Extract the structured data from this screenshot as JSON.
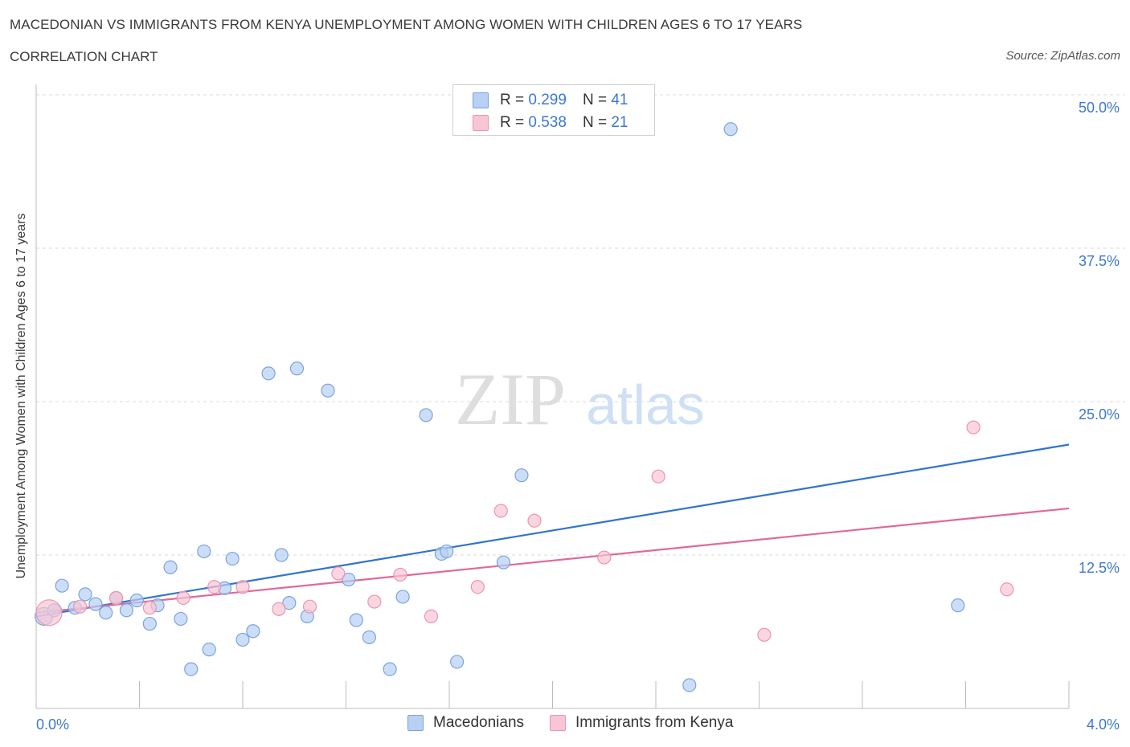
{
  "title": "MACEDONIAN VS IMMIGRANTS FROM KENYA UNEMPLOYMENT AMONG WOMEN WITH CHILDREN AGES 6 TO 17 YEARS",
  "subtitle": "CORRELATION CHART",
  "source": "Source: ZipAtlas.com",
  "watermark": {
    "zip": "ZIP",
    "atlas": "atlas"
  },
  "colors": {
    "macedonians_fill": "#b7d0f3",
    "macedonians_stroke": "#7aa4dc",
    "macedonians_line": "#2f74d0",
    "kenya_fill": "#f8c5d4",
    "kenya_stroke": "#ec94b0",
    "kenya_line": "#e0699a",
    "tick_label": "#3d78d0"
  },
  "legend_top": {
    "rows": [
      {
        "r_label": "R = ",
        "r_value": "0.299",
        "n_label": "N = ",
        "n_value": "41"
      },
      {
        "r_label": "R = ",
        "r_value": "0.538",
        "n_label": "N = ",
        "n_value": "21"
      }
    ]
  },
  "legend_bottom": [
    "Macedonians",
    "Immigrants from Kenya"
  ],
  "chart_data": {
    "type": "scatter",
    "title": "MACEDONIAN VS IMMIGRANTS FROM KENYA UNEMPLOYMENT AMONG WOMEN WITH CHILDREN AGES 6 TO 17 YEARS",
    "xlabel": "",
    "ylabel": "Unemployment Among Women with Children Ages 6 to 17 years",
    "xlim": [
      0,
      4.0
    ],
    "ylim": [
      0,
      50
    ],
    "x_tick_labels": [
      "0.0%",
      "4.0%"
    ],
    "y_tick_labels": [
      "12.5%",
      "25.0%",
      "37.5%",
      "50.0%"
    ],
    "y_ticks": [
      12.5,
      25.0,
      37.5,
      50.0
    ],
    "grid": "horizontal dashed",
    "legend_position": "top-center",
    "series": [
      {
        "name": "Macedonians",
        "R": 0.299,
        "N": 41,
        "trend": [
          [
            0.0,
            7.5
          ],
          [
            4.0,
            21.5
          ]
        ],
        "points": [
          [
            0.03,
            7.5
          ],
          [
            0.07,
            8.0
          ],
          [
            0.1,
            10.0
          ],
          [
            0.15,
            8.2
          ],
          [
            0.19,
            9.3
          ],
          [
            0.23,
            8.5
          ],
          [
            0.27,
            7.8
          ],
          [
            0.31,
            9.0
          ],
          [
            0.35,
            8.0
          ],
          [
            0.39,
            8.8
          ],
          [
            0.44,
            6.9
          ],
          [
            0.47,
            8.4
          ],
          [
            0.52,
            11.5
          ],
          [
            0.56,
            7.3
          ],
          [
            0.6,
            3.2
          ],
          [
            0.65,
            12.8
          ],
          [
            0.67,
            4.8
          ],
          [
            0.73,
            9.8
          ],
          [
            0.76,
            12.2
          ],
          [
            0.8,
            5.6
          ],
          [
            0.84,
            6.3
          ],
          [
            0.9,
            27.3
          ],
          [
            0.95,
            12.5
          ],
          [
            0.98,
            8.6
          ],
          [
            1.01,
            27.7
          ],
          [
            1.05,
            7.5
          ],
          [
            1.13,
            25.9
          ],
          [
            1.21,
            10.5
          ],
          [
            1.24,
            7.2
          ],
          [
            1.29,
            5.8
          ],
          [
            1.37,
            3.2
          ],
          [
            1.42,
            9.1
          ],
          [
            1.51,
            23.9
          ],
          [
            1.57,
            12.6
          ],
          [
            1.59,
            12.8
          ],
          [
            1.63,
            3.8
          ],
          [
            1.81,
            11.9
          ],
          [
            1.88,
            19.0
          ],
          [
            2.53,
            1.9
          ],
          [
            2.69,
            47.2
          ],
          [
            3.57,
            8.4
          ]
        ]
      },
      {
        "name": "Immigrants from Kenya",
        "R": 0.538,
        "N": 21,
        "trend": [
          [
            0.0,
            7.8
          ],
          [
            4.0,
            16.3
          ]
        ],
        "points": [
          [
            0.05,
            7.8
          ],
          [
            0.17,
            8.3
          ],
          [
            0.31,
            9.0
          ],
          [
            0.44,
            8.2
          ],
          [
            0.57,
            9.0
          ],
          [
            0.69,
            9.9
          ],
          [
            0.8,
            9.9
          ],
          [
            0.94,
            8.1
          ],
          [
            1.06,
            8.3
          ],
          [
            1.17,
            11.0
          ],
          [
            1.31,
            8.7
          ],
          [
            1.41,
            10.9
          ],
          [
            1.53,
            7.5
          ],
          [
            1.71,
            9.9
          ],
          [
            1.8,
            16.1
          ],
          [
            1.93,
            15.3
          ],
          [
            2.2,
            12.3
          ],
          [
            2.41,
            18.9
          ],
          [
            2.82,
            6.0
          ],
          [
            3.63,
            22.9
          ],
          [
            3.76,
            9.7
          ]
        ]
      }
    ]
  }
}
